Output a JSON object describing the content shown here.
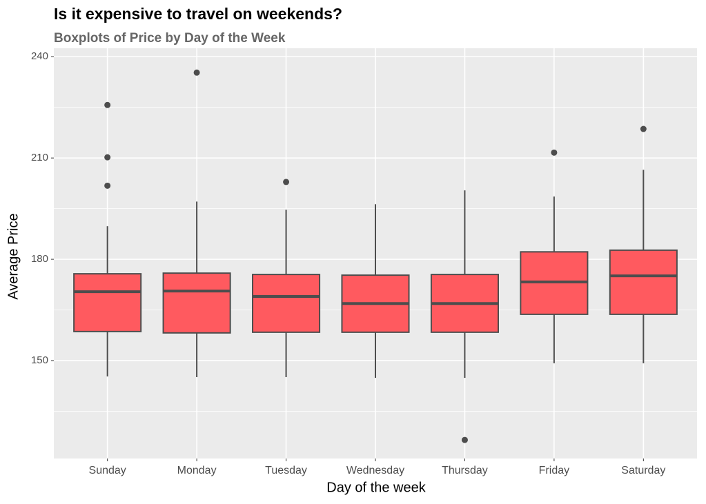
{
  "chart_data": {
    "type": "boxplot",
    "title": "Is it expensive to travel on weekends?",
    "subtitle": "Boxplots of Price by Day of the Week",
    "x_label": "Day of the week",
    "y_label": "Average Price",
    "categories": [
      "Sunday",
      "Monday",
      "Tuesday",
      "Wednesday",
      "Thursday",
      "Friday",
      "Saturday"
    ],
    "boxes": [
      {
        "whisker_low": 145.3,
        "q1": 158.6,
        "median": 170.4,
        "q3": 175.7,
        "whisker_high": 189.8,
        "outliers": [
          225.7,
          210.2,
          201.8
        ]
      },
      {
        "whisker_low": 145.1,
        "q1": 158.2,
        "median": 170.6,
        "q3": 175.9,
        "whisker_high": 197.1,
        "outliers": [
          235.3
        ]
      },
      {
        "whisker_low": 145.1,
        "q1": 158.4,
        "median": 169.0,
        "q3": 175.5,
        "whisker_high": 194.7,
        "outliers": [
          202.9
        ]
      },
      {
        "whisker_low": 144.9,
        "q1": 158.4,
        "median": 166.9,
        "q3": 175.3,
        "whisker_high": 196.3,
        "outliers": []
      },
      {
        "whisker_low": 144.9,
        "q1": 158.4,
        "median": 166.9,
        "q3": 175.5,
        "whisker_high": 200.4,
        "outliers": [
          126.5
        ]
      },
      {
        "whisker_low": 149.2,
        "q1": 163.7,
        "median": 173.3,
        "q3": 182.2,
        "whisker_high": 198.6,
        "outliers": [
          211.6
        ]
      },
      {
        "whisker_low": 149.2,
        "q1": 163.7,
        "median": 175.1,
        "q3": 182.7,
        "whisker_high": 206.5,
        "outliers": [
          218.6
        ]
      }
    ],
    "color": "#ff5a5f",
    "line_color": "#4d4d4d",
    "ylim": [
      121,
      242.5
    ],
    "yticks": [
      150,
      180,
      210,
      240
    ],
    "grid": true
  }
}
